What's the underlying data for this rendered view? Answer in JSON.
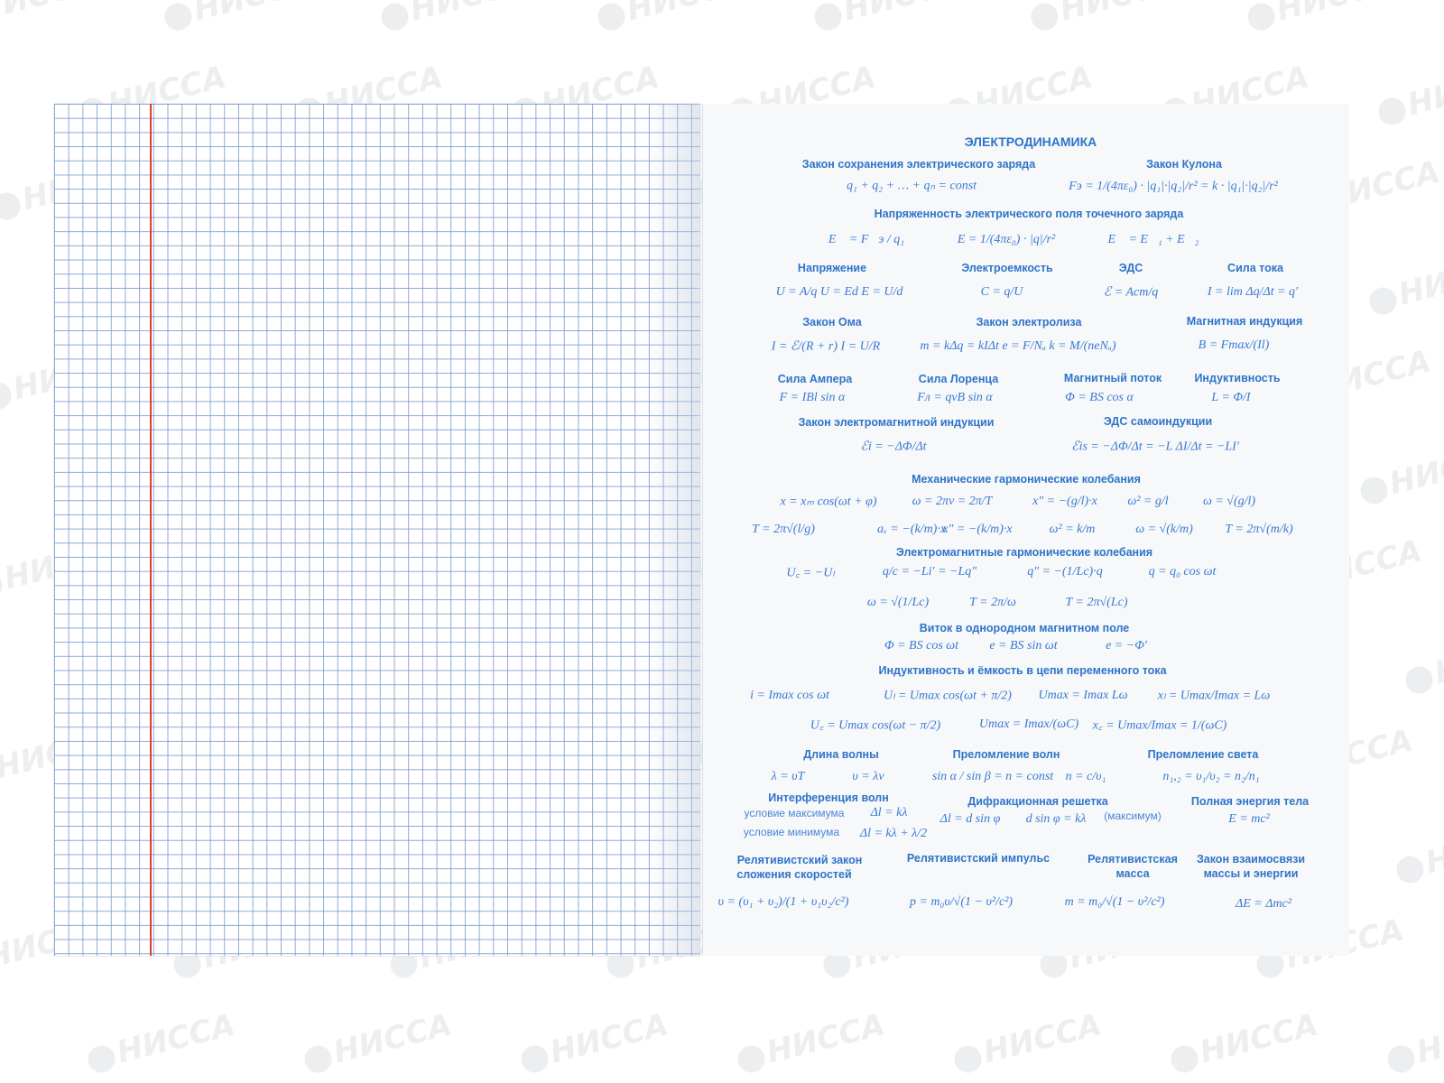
{
  "watermark": "НИССА",
  "colors": {
    "grid": "#789bcd",
    "margin": "#d8412c",
    "text": "#2f74c9",
    "page": "#f6f8fa"
  },
  "title": "ЭЛЕКТРОДИНАМИКА",
  "sections": [
    {
      "heading": [
        "Закон сохранения электрического заряда"
      ],
      "formulas": [
        "q₁ + q₂ + … + qₙ = const"
      ]
    },
    {
      "heading": [
        "Закон Кулона"
      ],
      "formulas": [
        "Fэ = 1/(4πε₀) · |q₁|·|q₂|/r² = k · |q₁|·|q₂|/r²"
      ]
    },
    {
      "heading": [
        "Напряженность электрического поля точечного заряда"
      ],
      "formulas": [
        "E⃗ = F⃗э / q₁",
        "E = 1/(4πε₀) · |q|/r²",
        "E⃗ = E⃗₁ + E⃗₂"
      ]
    },
    {
      "heading": [
        "Напряжение"
      ],
      "formulas": [
        "U = A/q    U = Ed    E = U/d"
      ]
    },
    {
      "heading": [
        "Электроемкость"
      ],
      "formulas": [
        "C = q/U"
      ]
    },
    {
      "heading": [
        "ЭДС"
      ],
      "formulas": [
        "ℰ = Aст/q"
      ]
    },
    {
      "heading": [
        "Сила тока"
      ],
      "formulas": [
        "I = lim Δq/Δt = q′"
      ]
    },
    {
      "heading": [
        "Закон Ома"
      ],
      "formulas": [
        "I = ℰ/(R + r)     I = U/R"
      ]
    },
    {
      "heading": [
        "Закон электролиза"
      ],
      "formulas": [
        "m = kΔq = kIΔt   e = F/Nₐ   k = M/(neNₐ)"
      ]
    },
    {
      "heading": [
        "Магнитная индукция"
      ],
      "formulas": [
        "B = Fmax/(Il)"
      ]
    },
    {
      "heading": [
        "Сила Ампера"
      ],
      "formulas": [
        "F = IBl sin α"
      ]
    },
    {
      "heading": [
        "Сила Лоренца"
      ],
      "formulas": [
        "Fл = qvB sin α"
      ]
    },
    {
      "heading": [
        "Магнитный поток"
      ],
      "formulas": [
        "Φ = BS cos α"
      ]
    },
    {
      "heading": [
        "Индуктивность"
      ],
      "formulas": [
        "L = Φ/I"
      ]
    },
    {
      "heading": [
        "Закон электромагнитной индукции"
      ],
      "formulas": [
        "ℰi = −ΔΦ/Δt"
      ]
    },
    {
      "heading": [
        "ЭДС самоиндукции"
      ],
      "formulas": [
        "ℰis = −ΔΦ/Δt = −L ΔI/Δt = −LI′"
      ]
    },
    {
      "heading": [
        "Механические гармонические колебания"
      ],
      "formulas": [
        "x = xₘ cos(ωt + φ)",
        "ω = 2πν = 2π/T",
        "x″ = −(g/l)·x",
        "ω² = g/l",
        "ω = √(g/l)",
        "T = 2π√(l/g)",
        "aₓ = −(k/m)·x",
        "x″ = −(k/m)·x",
        "ω² = k/m",
        "ω = √(k/m)",
        "T = 2π√(m/k)"
      ]
    },
    {
      "heading": [
        "Электромагнитные гармонические колебания"
      ],
      "formulas": [
        "U꜀ = −Uₗ",
        "q/c = −Li′ = −Lq″",
        "q″ = −(1/Lc)·q",
        "q = q₀ cos ωt",
        "ω = √(1/Lc)",
        "T = 2π/ω",
        "T = 2π√(Lc)"
      ]
    },
    {
      "heading": [
        "Виток в однородном магнитном поле"
      ],
      "formulas": [
        "Φ = BS cos ωt",
        "e = BS sin ωt",
        "e = −Φ′"
      ]
    },
    {
      "heading": [
        "Индуктивность и ёмкость в цепи переменного тока"
      ],
      "formulas": [
        "i = Imax cos ωt",
        "Uₗ = Umax cos(ωt + π/2)",
        "Umax = Imax Lω",
        "xₗ = Umax/Imax = Lω",
        "U꜀ = Umax cos(ωt − π/2)",
        "Umax = Imax/(ωC)",
        "x꜀ = Umax/Imax = 1/(ωC)"
      ]
    },
    {
      "heading": [
        "Длина волны"
      ],
      "formulas": [
        "λ = υT",
        "υ = λν"
      ]
    },
    {
      "heading": [
        "Преломление волн"
      ],
      "formulas": [
        "sin α / sin β = n = const",
        "n = c/υ₁"
      ]
    },
    {
      "heading": [
        "Преломление света"
      ],
      "formulas": [
        "n₁,₂ = υ₁/υ₂ = n₂/n₁"
      ]
    },
    {
      "heading": [
        "Интерференция волн"
      ],
      "formulas": [
        "Δl = kλ",
        "Δl = kλ + λ/2"
      ],
      "notes": [
        "условие максимума",
        "условие минимума"
      ]
    },
    {
      "heading": [
        "Дифракционная решетка"
      ],
      "formulas": [
        "Δl = d sin φ",
        "d sin φ = kλ"
      ],
      "notes": [
        "(максимум)"
      ]
    },
    {
      "heading": [
        "Полная энергия тела"
      ],
      "formulas": [
        "E = mc²"
      ]
    },
    {
      "heading": [
        "Релятивистский закон",
        "сложения скоростей"
      ],
      "formulas": [
        "υ = (υ₁ + υ₂)/(1 + υ₁υ₂/c²)"
      ]
    },
    {
      "heading": [
        "Релятивистский импульс"
      ],
      "formulas": [
        "p = m₀υ/√(1 − υ²/c²)"
      ]
    },
    {
      "heading": [
        "Релятивистская",
        "масса"
      ],
      "formulas": [
        "m = m₀/√(1 − υ²/c²)"
      ]
    },
    {
      "heading": [
        "Закон взаимосвязи",
        "массы и энергии"
      ],
      "formulas": [
        "ΔE = Δmc²"
      ]
    }
  ]
}
